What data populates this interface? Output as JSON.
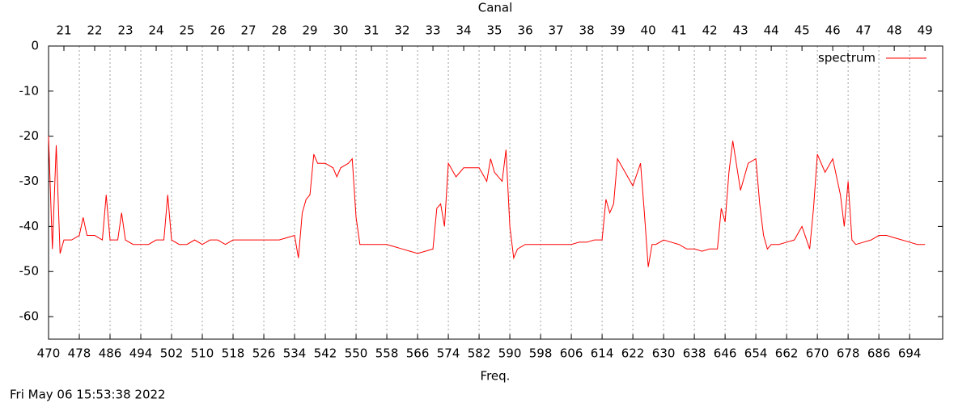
{
  "chart_data": {
    "type": "line",
    "xlabel": "Freq.",
    "x2label": "Canal",
    "footer": "Fri May 06 15:53:38 2022",
    "xlim": [
      470,
      702.6
    ],
    "ylim": [
      -65,
      0
    ],
    "xticks": [
      470,
      478,
      486,
      494,
      502,
      510,
      518,
      526,
      534,
      542,
      550,
      558,
      566,
      574,
      582,
      590,
      598,
      606,
      614,
      622,
      630,
      638,
      646,
      654,
      662,
      670,
      678,
      686,
      694
    ],
    "x2ticks": [
      {
        "value": 474,
        "label": "21"
      },
      {
        "value": 482,
        "label": "22"
      },
      {
        "value": 490,
        "label": "23"
      },
      {
        "value": 498,
        "label": "24"
      },
      {
        "value": 506,
        "label": "25"
      },
      {
        "value": 514,
        "label": "26"
      },
      {
        "value": 522,
        "label": "27"
      },
      {
        "value": 530,
        "label": "28"
      },
      {
        "value": 538,
        "label": "29"
      },
      {
        "value": 546,
        "label": "30"
      },
      {
        "value": 554,
        "label": "31"
      },
      {
        "value": 562,
        "label": "32"
      },
      {
        "value": 570,
        "label": "33"
      },
      {
        "value": 578,
        "label": "34"
      },
      {
        "value": 586,
        "label": "35"
      },
      {
        "value": 594,
        "label": "36"
      },
      {
        "value": 602,
        "label": "37"
      },
      {
        "value": 610,
        "label": "38"
      },
      {
        "value": 618,
        "label": "39"
      },
      {
        "value": 626,
        "label": "40"
      },
      {
        "value": 634,
        "label": "41"
      },
      {
        "value": 642,
        "label": "42"
      },
      {
        "value": 650,
        "label": "43"
      },
      {
        "value": 658,
        "label": "44"
      },
      {
        "value": 666,
        "label": "45"
      },
      {
        "value": 674,
        "label": "46"
      },
      {
        "value": 682,
        "label": "47"
      },
      {
        "value": 690,
        "label": "48"
      },
      {
        "value": 698,
        "label": "49"
      }
    ],
    "yticks": [
      0,
      -10,
      -20,
      -30,
      -40,
      -50,
      -60
    ],
    "grid": "x",
    "legend": "top right",
    "x": [
      470,
      471,
      472,
      473,
      474,
      476,
      478,
      479,
      480,
      482,
      484,
      485,
      486,
      488,
      489,
      490,
      492,
      494,
      496,
      498,
      500,
      501,
      502,
      504,
      506,
      508,
      510,
      512,
      514,
      516,
      518,
      520,
      522,
      524,
      526,
      528,
      530,
      532,
      534,
      535,
      536,
      537,
      538,
      539,
      540,
      542,
      544,
      545,
      546,
      548,
      549,
      550,
      551,
      552,
      554,
      556,
      558,
      560,
      562,
      564,
      566,
      568,
      570,
      571,
      572,
      573,
      574,
      576,
      578,
      580,
      582,
      584,
      585,
      586,
      587,
      588,
      589,
      590,
      591,
      592,
      594,
      596,
      598,
      600,
      602,
      604,
      606,
      608,
      610,
      612,
      614,
      615,
      616,
      617,
      618,
      620,
      622,
      624,
      625,
      626,
      627,
      628,
      630,
      632,
      634,
      636,
      638,
      640,
      642,
      644,
      645,
      646,
      647,
      648,
      650,
      652,
      654,
      655,
      656,
      657,
      658,
      660,
      662,
      664,
      666,
      668,
      669,
      670,
      672,
      674,
      676,
      677,
      678,
      679,
      680,
      682,
      684,
      686,
      688,
      690,
      692,
      694,
      696,
      698
    ],
    "series": [
      {
        "name": "spectrum",
        "color": "#ff0000",
        "values": [
          -20,
          -45,
          -22,
          -46,
          -43,
          -43,
          -42,
          -38,
          -42,
          -42,
          -43,
          -33,
          -43,
          -43,
          -37,
          -43,
          -44,
          -44,
          -44,
          -43,
          -43,
          -33,
          -43,
          -44,
          -44,
          -43,
          -44,
          -43,
          -43,
          -44,
          -43,
          -43,
          -43,
          -43,
          -43,
          -43,
          -43,
          -42.5,
          -42,
          -47,
          -37,
          -34,
          -33,
          -24,
          -26,
          -26,
          -27,
          -29,
          -27,
          -26,
          -25,
          -38,
          -44,
          -44,
          -44,
          -44,
          -44,
          -44.5,
          -45,
          -45.5,
          -46,
          -45.5,
          -45,
          -36,
          -35,
          -40,
          -26,
          -29,
          -27,
          -27,
          -27,
          -30,
          -25,
          -28,
          -29,
          -30,
          -23,
          -40,
          -47,
          -45,
          -44,
          -44,
          -44,
          -44,
          -44,
          -44,
          -44,
          -43.5,
          -43.5,
          -43,
          -43,
          -34,
          -37,
          -35,
          -25,
          -28,
          -31,
          -26,
          -37,
          -49,
          -44,
          -44,
          -43,
          -43.5,
          -44,
          -45,
          -45,
          -45.5,
          -45,
          -45,
          -36,
          -39,
          -28,
          -21,
          -32,
          -26,
          -25,
          -35,
          -42,
          -45,
          -44,
          -44,
          -43.5,
          -43,
          -40,
          -45,
          -36,
          -24,
          -28,
          -25,
          -33,
          -40,
          -30,
          -43,
          -44,
          -43.5,
          -43,
          -42,
          -42,
          -42.5,
          -43,
          -43.5,
          -44,
          -44
        ]
      }
    ]
  }
}
